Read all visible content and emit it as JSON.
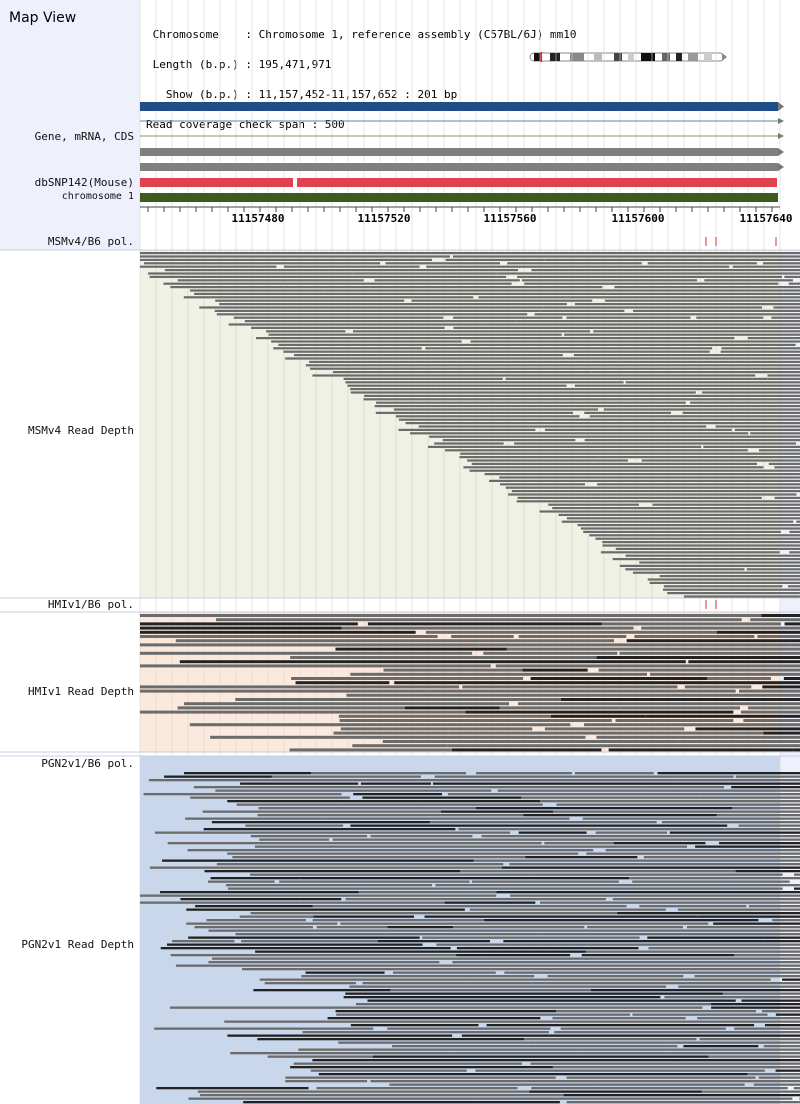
{
  "header": {
    "title": "Map View",
    "info_lines": [
      " Chromosome    : Chromosome 1, reference assembly (C57BL/6J) mm10",
      " Length (b.p.) : 195,471,971",
      "   Show (b.p.) : 11,157,452-11,157,652 : 201 bp",
      "Read coverage check span : 500"
    ]
  },
  "tracks": {
    "gene_label": "Gene, mRNA, CDS",
    "dbsnp_label": "dbSNP142(Mouse)",
    "chromosome_label": "chromosome 1",
    "msm_pol_label": "MSMv4/B6 pol.",
    "msm_depth_label": "MSMv4 Read Depth",
    "hmi_pol_label": "HMIv1/B6 pol.",
    "hmi_depth_label": "HMIv1 Read Depth",
    "pgn_pol_label": "PGN2v1/B6 pol.",
    "pgn_depth_label": "PGN2v1 Read Depth"
  },
  "axis": {
    "ticks": [
      "11157480",
      "11157520",
      "11157560",
      "11157600",
      "11157640"
    ]
  },
  "colors": {
    "gene": "#1f4e86",
    "snp": "#e0424f",
    "chromosome": "#3d5a1f",
    "msm_bg": "#eef1e3",
    "hmi_bg": "#fbe9dd",
    "pgn_bg": "#c9d7ed",
    "read": "#6b6b6b",
    "read_dark": "#222222"
  }
}
